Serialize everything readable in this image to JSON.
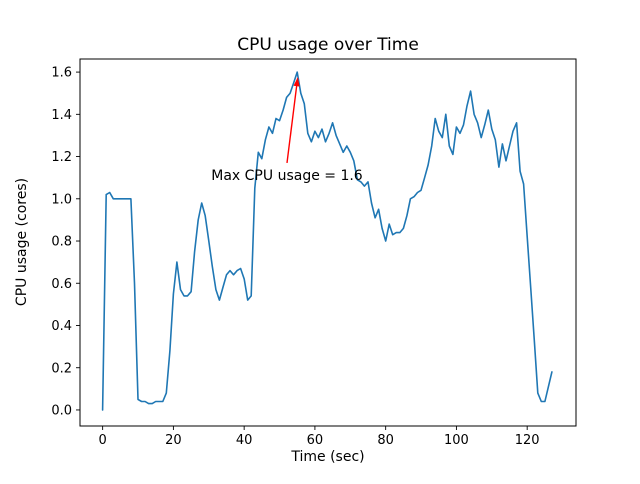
{
  "chart_data": {
    "type": "line",
    "title": "CPU usage over Time",
    "xlabel": "Time (sec)",
    "ylabel": "CPU usage (cores)",
    "line_color": "#1f77b4",
    "axis_color": "#000000",
    "grid": false,
    "legend": null,
    "xlim": [
      -6.4,
      133.8
    ],
    "ylim": [
      -0.076,
      1.662
    ],
    "x_ticks": [
      0,
      20,
      40,
      60,
      80,
      100,
      120
    ],
    "x_tick_labels": [
      "0",
      "20",
      "40",
      "60",
      "80",
      "100",
      "120"
    ],
    "y_ticks": [
      0.0,
      0.2,
      0.4,
      0.6,
      0.8,
      1.0,
      1.2,
      1.4,
      1.6
    ],
    "y_tick_labels": [
      "0.0",
      "0.2",
      "0.4",
      "0.6",
      "0.8",
      "1.0",
      "1.2",
      "1.4",
      "1.6"
    ],
    "x": [
      0,
      1,
      2,
      3,
      4,
      5,
      6,
      7,
      8,
      9,
      10,
      11,
      12,
      13,
      14,
      15,
      16,
      17,
      18,
      19,
      20,
      21,
      22,
      23,
      24,
      25,
      26,
      27,
      28,
      29,
      30,
      31,
      32,
      33,
      34,
      35,
      36,
      37,
      38,
      39,
      40,
      41,
      42,
      43,
      44,
      45,
      46,
      47,
      48,
      49,
      50,
      51,
      52,
      53,
      54,
      55,
      56,
      57,
      58,
      59,
      60,
      61,
      62,
      63,
      64,
      65,
      66,
      67,
      68,
      69,
      70,
      71,
      72,
      73,
      74,
      75,
      76,
      77,
      78,
      79,
      80,
      81,
      82,
      83,
      84,
      85,
      86,
      87,
      88,
      89,
      90,
      91,
      92,
      93,
      94,
      95,
      96,
      97,
      98,
      99,
      100,
      101,
      102,
      103,
      104,
      105,
      106,
      107,
      108,
      109,
      110,
      111,
      112,
      113,
      114,
      115,
      116,
      117,
      118,
      119,
      120,
      121,
      122,
      123,
      124,
      125,
      126,
      127
    ],
    "y": [
      0.0,
      1.02,
      1.03,
      1.0,
      1.0,
      1.0,
      1.0,
      1.0,
      1.0,
      0.6,
      0.05,
      0.04,
      0.04,
      0.03,
      0.03,
      0.04,
      0.04,
      0.04,
      0.08,
      0.28,
      0.55,
      0.7,
      0.57,
      0.54,
      0.54,
      0.56,
      0.75,
      0.9,
      0.98,
      0.92,
      0.8,
      0.68,
      0.57,
      0.52,
      0.58,
      0.64,
      0.66,
      0.64,
      0.66,
      0.67,
      0.62,
      0.52,
      0.54,
      1.05,
      1.22,
      1.19,
      1.28,
      1.34,
      1.31,
      1.38,
      1.37,
      1.42,
      1.48,
      1.5,
      1.55,
      1.6,
      1.5,
      1.45,
      1.31,
      1.27,
      1.32,
      1.29,
      1.33,
      1.27,
      1.31,
      1.36,
      1.3,
      1.26,
      1.22,
      1.25,
      1.22,
      1.18,
      1.09,
      1.08,
      1.06,
      1.08,
      0.98,
      0.91,
      0.95,
      0.86,
      0.8,
      0.88,
      0.83,
      0.84,
      0.84,
      0.86,
      0.92,
      1.0,
      1.01,
      1.03,
      1.04,
      1.1,
      1.16,
      1.25,
      1.38,
      1.32,
      1.29,
      1.4,
      1.25,
      1.21,
      1.34,
      1.31,
      1.35,
      1.44,
      1.51,
      1.4,
      1.36,
      1.29,
      1.35,
      1.42,
      1.33,
      1.28,
      1.15,
      1.26,
      1.18,
      1.25,
      1.32,
      1.36,
      1.13,
      1.07,
      0.82,
      0.58,
      0.33,
      0.08,
      0.04,
      0.04,
      0.11,
      0.18
    ],
    "annotation": {
      "text": "Max CPU usage = 1.6",
      "color": "#ff0000",
      "target": [
        55,
        1.6
      ],
      "arrow_from": [
        52.1,
        1.17
      ],
      "arrow_to": [
        55.1,
        1.57
      ]
    }
  }
}
